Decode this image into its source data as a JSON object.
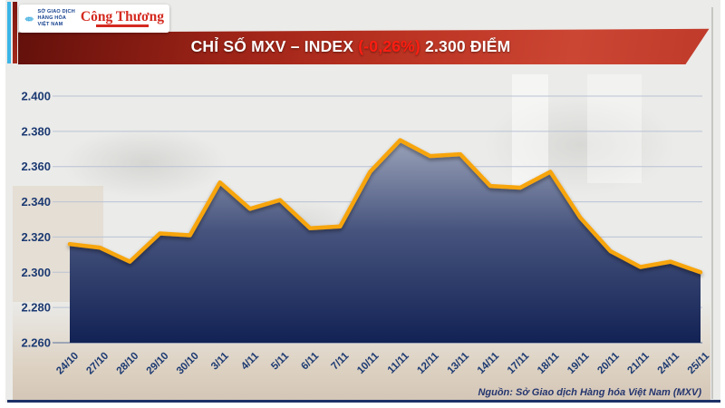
{
  "header": {
    "mxv_logo": {
      "line1": "SỞ GIAO DỊCH",
      "line2": "HÀNG HÓA",
      "line3": "VIỆT NAM"
    },
    "paper_logo": "Công Thương"
  },
  "title": {
    "main": "CHỈ SỐ MXV – INDEX ",
    "change": "(-0,26%)",
    "points": " 2.300 ĐIỂM"
  },
  "chart_data": {
    "type": "area",
    "title": "CHỈ SỐ MXV – INDEX",
    "categories": [
      "24/10",
      "27/10",
      "28/10",
      "29/10",
      "30/10",
      "3/11",
      "4/11",
      "5/11",
      "6/11",
      "7/11",
      "10/11",
      "11/11",
      "12/11",
      "13/11",
      "14/11",
      "17/11",
      "18/11",
      "19/11",
      "20/11",
      "21/11",
      "24/11",
      "25/11"
    ],
    "values": [
      2316,
      2314,
      2306,
      2322,
      2321,
      2351,
      2336,
      2341,
      2325,
      2326,
      2357,
      2375,
      2366,
      2367,
      2349,
      2348,
      2357,
      2331,
      2312,
      2303,
      2306,
      2300
    ],
    "xlabel": "",
    "ylabel": "",
    "ylim": [
      2260,
      2400
    ],
    "ytick_step": 20,
    "ytick_labels": [
      "2.400",
      "2.380",
      "2.360",
      "2.340",
      "2.320",
      "2.300",
      "2.280",
      "2.260"
    ],
    "grid": true,
    "legend": "none",
    "line_color": "#f7a50a",
    "area_top_color": "#9aa3b9",
    "area_mid_color": "#46537d",
    "area_bottom_color": "#122254",
    "grid_color": "#b9c2d4",
    "axis_label_color": "#1c3a72"
  },
  "footer": {
    "source": "Nguồn: Sở Giao dịch Hàng hóa Việt Nam (MXV)"
  },
  "colors": {
    "panel_bg": "#ebebe9",
    "banner_dark_red": "#9c2317",
    "banner_red": "#cc4634",
    "percent_red": "#ff1d12",
    "stripe_cyan": "#3ab5e6",
    "stripe_red": "#8e1d14",
    "logo_blue": "#2fa7dc",
    "logo_red": "#d42a20",
    "navy": "#1d3166"
  }
}
